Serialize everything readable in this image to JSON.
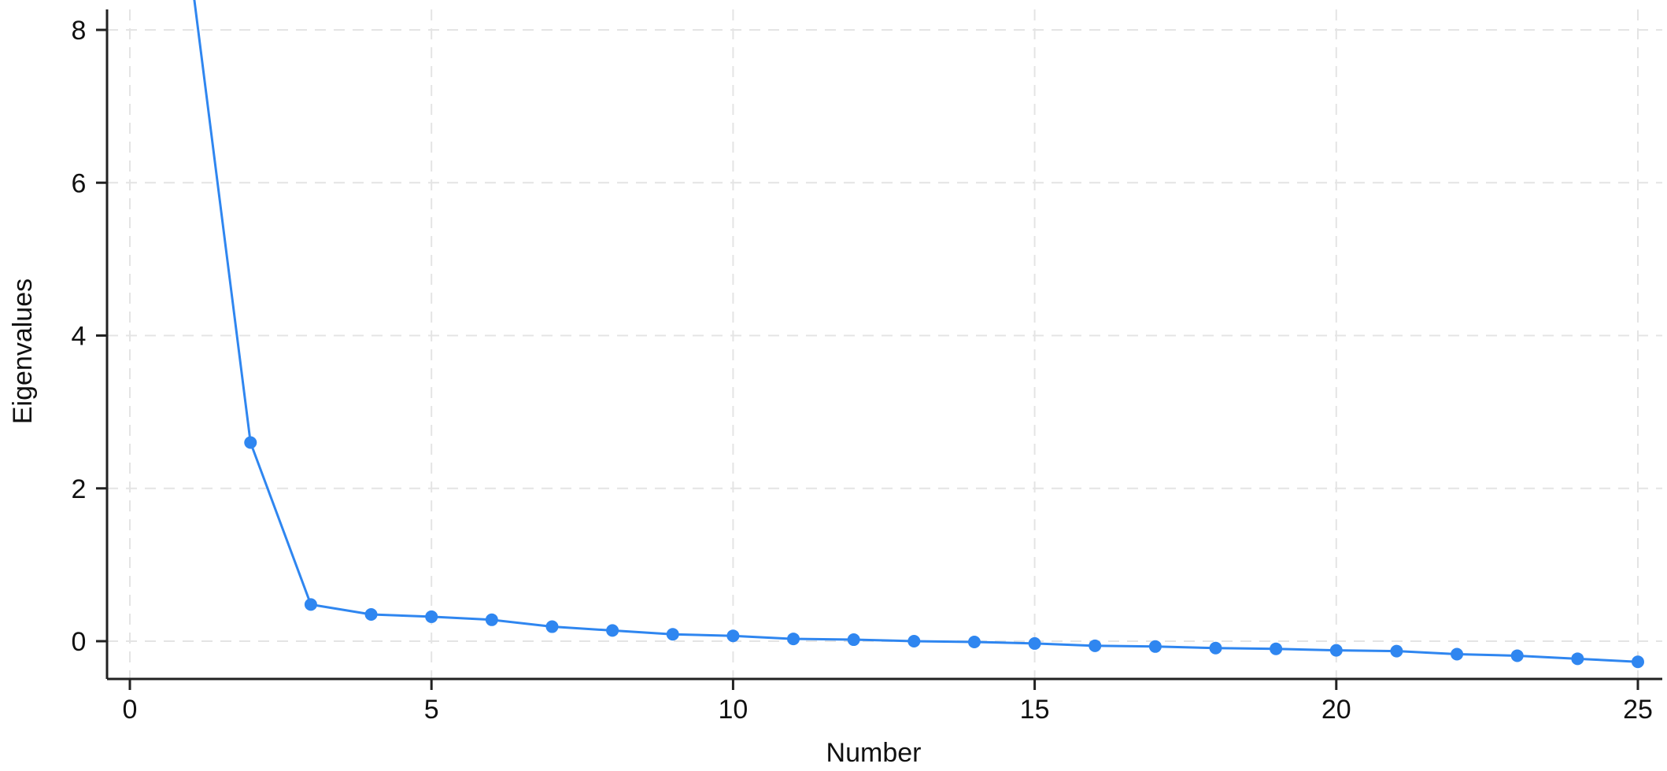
{
  "chart_data": {
    "type": "line",
    "title": "",
    "xlabel": "Number",
    "ylabel": "Eigenvalues",
    "xlim": [
      0,
      25
    ],
    "ylim": [
      -0.55,
      9.0
    ],
    "xticks": [
      0,
      5,
      10,
      15,
      20,
      25
    ],
    "yticks": [
      0,
      2,
      4,
      6,
      8
    ],
    "xtick_labels": [
      "0",
      "5",
      "10",
      "15",
      "20",
      "25"
    ],
    "ytick_labels": [
      "0",
      "2",
      "4",
      "6",
      "8"
    ],
    "grid": true,
    "legend": "none",
    "series": [
      {
        "color": "#2f86f0",
        "marker": "circle",
        "x": [
          1,
          2,
          3,
          4,
          5,
          6,
          7,
          8,
          9,
          10,
          11,
          12,
          13,
          14,
          15,
          16,
          17,
          18,
          19,
          20,
          21,
          22,
          23,
          24,
          25
        ],
        "y": [
          8.82,
          2.6,
          0.48,
          0.35,
          0.32,
          0.28,
          0.19,
          0.14,
          0.09,
          0.07,
          0.03,
          0.02,
          0.0,
          -0.01,
          -0.03,
          -0.06,
          -0.07,
          -0.09,
          -0.1,
          -0.12,
          -0.13,
          -0.17,
          -0.19,
          -0.23,
          -0.27
        ]
      }
    ]
  }
}
